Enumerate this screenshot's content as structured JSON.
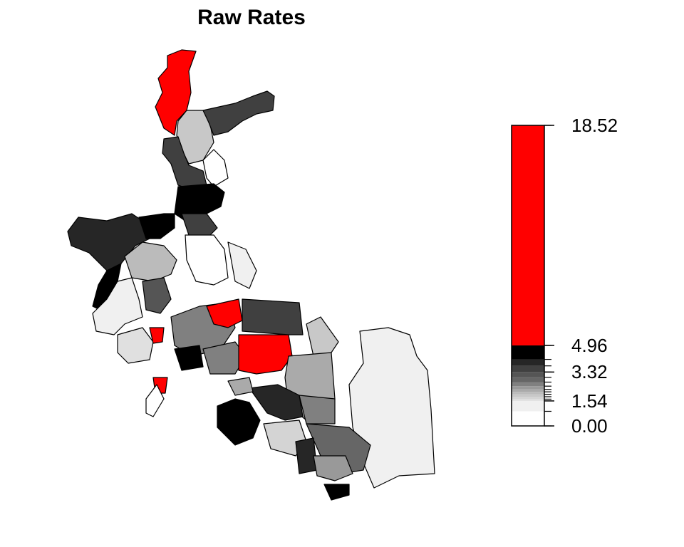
{
  "title": "Raw Rates",
  "legend": {
    "lim": [
      0,
      18.52
    ],
    "ticks": [
      {
        "value": 0,
        "label": "0.00"
      },
      1.54,
      3.32,
      4.96,
      18.52
    ],
    "breaks": [
      0,
      0.9,
      1.54,
      1.65,
      1.8,
      1.95,
      2.1,
      2.25,
      2.45,
      2.7,
      3.0,
      3.32,
      3.7,
      4.1,
      4.96,
      18.52
    ],
    "colors": [
      "#ffffff",
      "#f0f0f0",
      "#e0e0e0",
      "#d4d4d4",
      "#c8c8c8",
      "#bbbbbb",
      "#aaaaaa",
      "#999999",
      "#808080",
      "#666666",
      "#555555",
      "#404040",
      "#262626",
      "#000000",
      "#ff0000"
    ]
  },
  "regions": [
    10,
    1.9,
    3.5,
    3.5,
    0.5,
    4.5,
    3.9,
    4.5,
    4.5,
    3.5,
    2.0,
    0.95,
    3.1,
    1.6,
    0.5,
    1.2,
    2.5,
    9,
    9,
    4.5,
    2.6,
    8,
    3.5,
    1.9,
    2.2,
    8,
    0.5,
    1.0,
    4.5,
    3.8,
    2.6,
    2.7,
    1.7,
    3.8,
    2.4,
    4.5,
    2.2
  ]
}
